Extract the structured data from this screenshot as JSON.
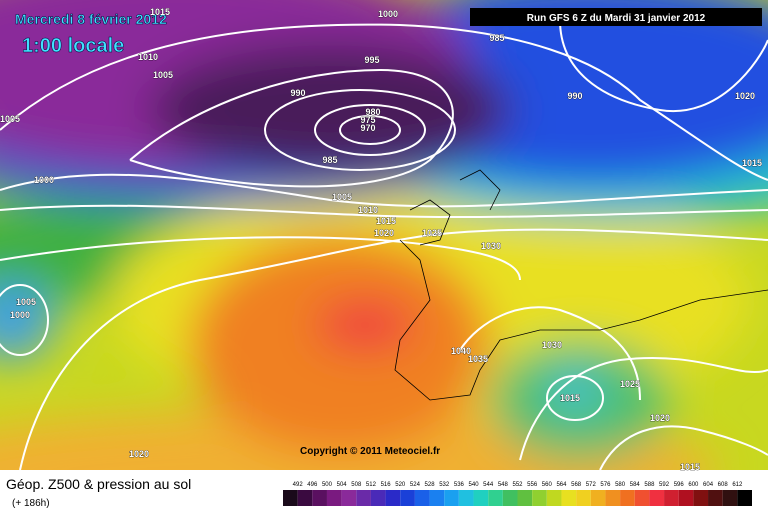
{
  "header": {
    "date": "Mercredi 8 février 2012",
    "time": "1:00 locale",
    "run": "Run GFS 6 Z du Mardi 31 janvier 2012"
  },
  "copyright": "Copyright © 2011 Meteociel.fr",
  "footer": {
    "title": "Géop. Z500 & pression au sol",
    "lead": "(+ 186h)"
  },
  "scale_labels": [
    "492",
    "496",
    "500",
    "504",
    "508",
    "512",
    "516",
    "520",
    "524",
    "528",
    "532",
    "536",
    "540",
    "544",
    "548",
    "552",
    "556",
    "560",
    "564",
    "568",
    "572",
    "576",
    "580",
    "584",
    "588",
    "592",
    "596",
    "600",
    "604",
    "608",
    "612"
  ],
  "isobar_labels": [
    "1015",
    "1000",
    "985",
    "1010",
    "1005",
    "995",
    "990",
    "990",
    "1020",
    "1005",
    "980",
    "975",
    "970",
    "985",
    "1015",
    "1000",
    "1005",
    "1010",
    "1015",
    "1020",
    "1025",
    "1030",
    "1005",
    "1000",
    "1030",
    "1040",
    "1035",
    "1025",
    "1015",
    "1020",
    "1020",
    "1015"
  ]
}
